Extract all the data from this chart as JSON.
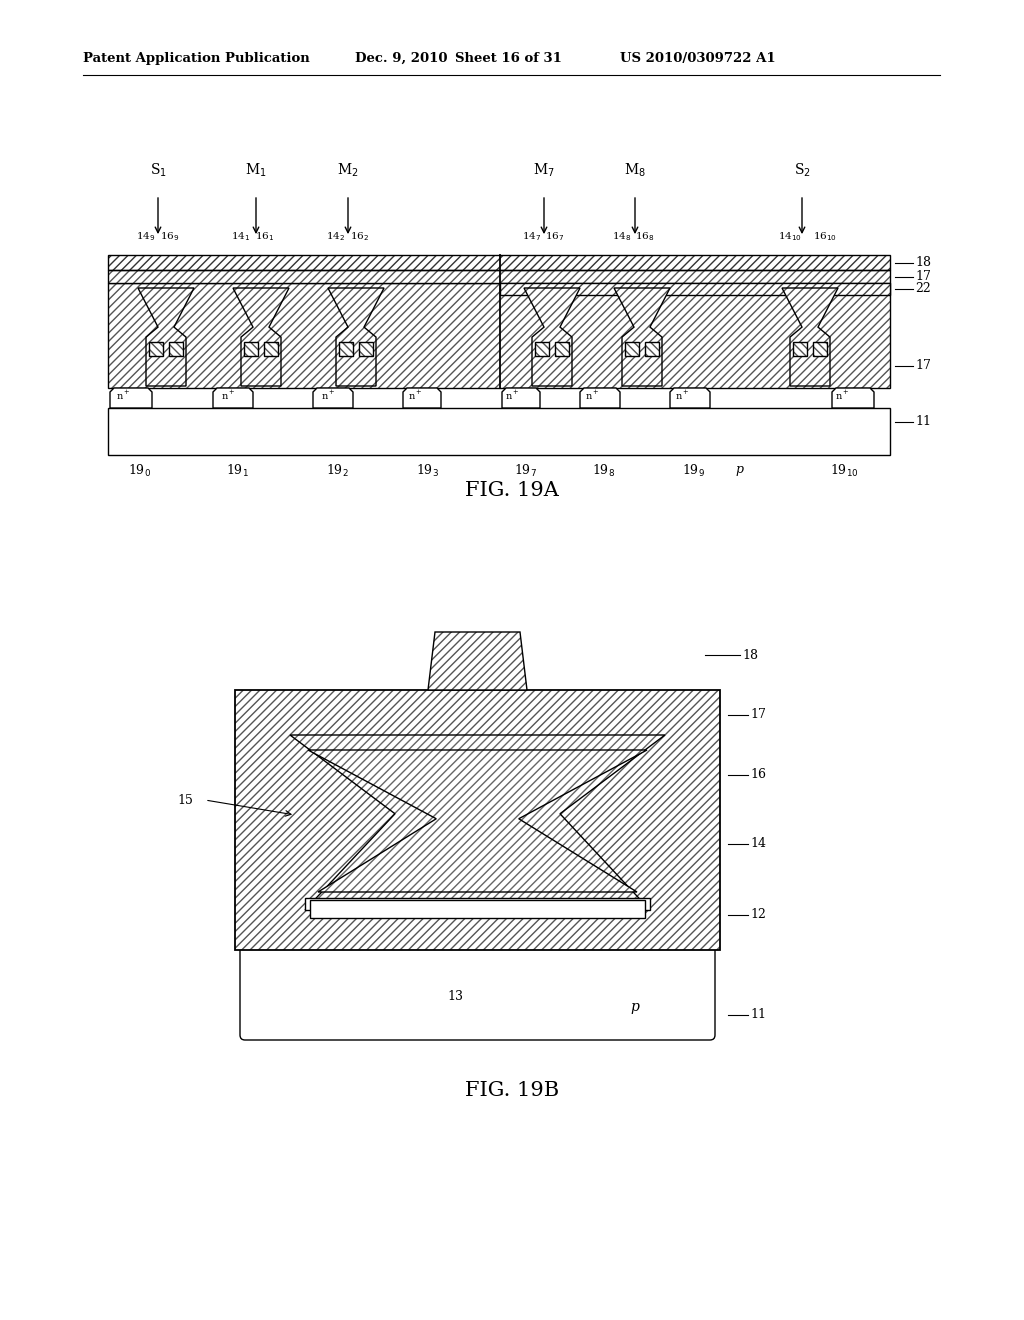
{
  "header_left": "Patent Application Publication",
  "header_date": "Dec. 9, 2010",
  "header_sheet": "Sheet 16 of 31",
  "header_right": "US 2010/0309722 A1",
  "fig_a_label": "FIG. 19A",
  "fig_b_label": "FIG. 19B",
  "bg_color": "#ffffff",
  "line_color": "#000000"
}
